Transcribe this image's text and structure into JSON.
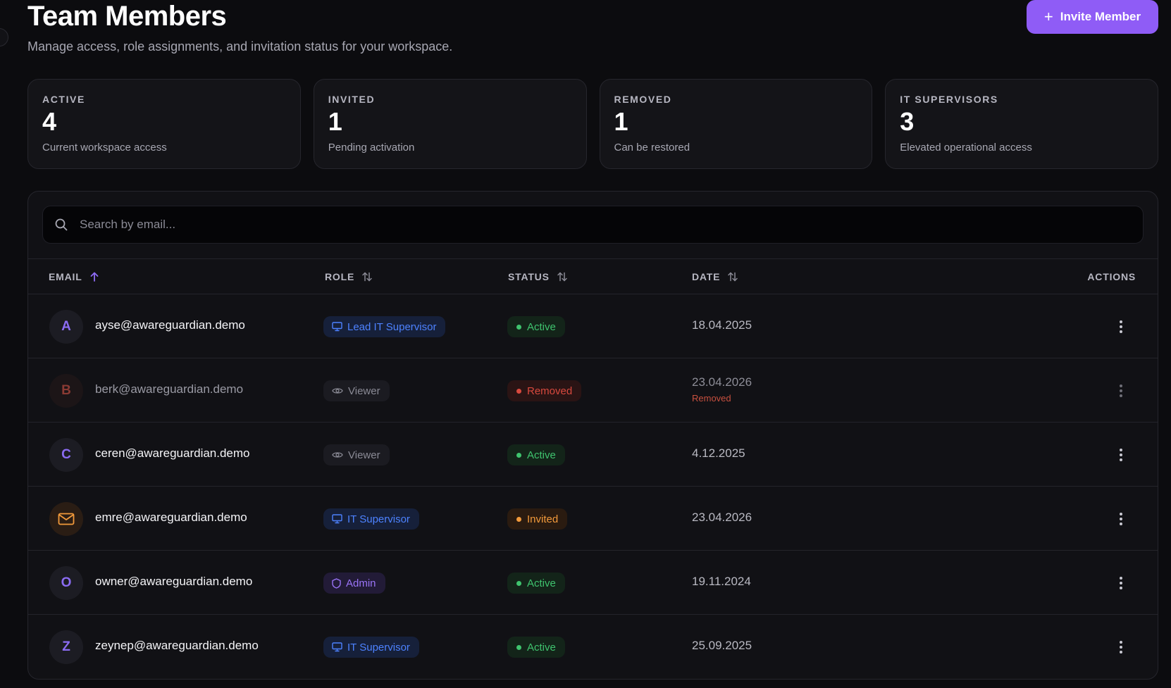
{
  "header": {
    "title": "Team Members",
    "subtitle": "Manage access, role assignments, and invitation status for your workspace.",
    "invite_label": "Invite Member"
  },
  "stats": [
    {
      "label": "ACTIVE",
      "value": "4",
      "desc": "Current workspace access"
    },
    {
      "label": "INVITED",
      "value": "1",
      "desc": "Pending activation"
    },
    {
      "label": "REMOVED",
      "value": "1",
      "desc": "Can be restored"
    },
    {
      "label": "IT SUPERVISORS",
      "value": "3",
      "desc": "Elevated operational access"
    }
  ],
  "search": {
    "placeholder": "Search by email...",
    "value": ""
  },
  "table": {
    "columns": {
      "email": "EMAIL",
      "role": "ROLE",
      "status": "STATUS",
      "date": "DATE",
      "actions": "ACTIONS"
    },
    "rows": [
      {
        "initial": "A",
        "email": "ayse@awareguardian.demo",
        "role": "Lead IT Supervisor",
        "role_icon": "monitor-icon",
        "status": "Active",
        "date": "18.04.2025",
        "date_note": ""
      },
      {
        "initial": "B",
        "email": "berk@awareguardian.demo",
        "role": "Viewer",
        "role_icon": "eye-icon",
        "status": "Removed",
        "date": "23.04.2026",
        "date_note": "Removed"
      },
      {
        "initial": "C",
        "email": "ceren@awareguardian.demo",
        "role": "Viewer",
        "role_icon": "eye-icon",
        "status": "Active",
        "date": "4.12.2025",
        "date_note": ""
      },
      {
        "initial": "",
        "email": "emre@awareguardian.demo",
        "role": "IT Supervisor",
        "role_icon": "monitor-icon",
        "status": "Invited",
        "date": "23.04.2026",
        "date_note": ""
      },
      {
        "initial": "O",
        "email": "owner@awareguardian.demo",
        "role": "Admin",
        "role_icon": "shield-icon",
        "status": "Active",
        "date": "19.11.2024",
        "date_note": ""
      },
      {
        "initial": "Z",
        "email": "zeynep@awareguardian.demo",
        "role": "IT Supervisor",
        "role_icon": "monitor-icon",
        "status": "Active",
        "date": "25.09.2025",
        "date_note": ""
      }
    ]
  },
  "colors": {
    "accent": "#8f5cf6",
    "active": "#3fc36e",
    "removed": "#d8493e",
    "invited": "#f29a3b",
    "it_role": "#4d82ff"
  }
}
